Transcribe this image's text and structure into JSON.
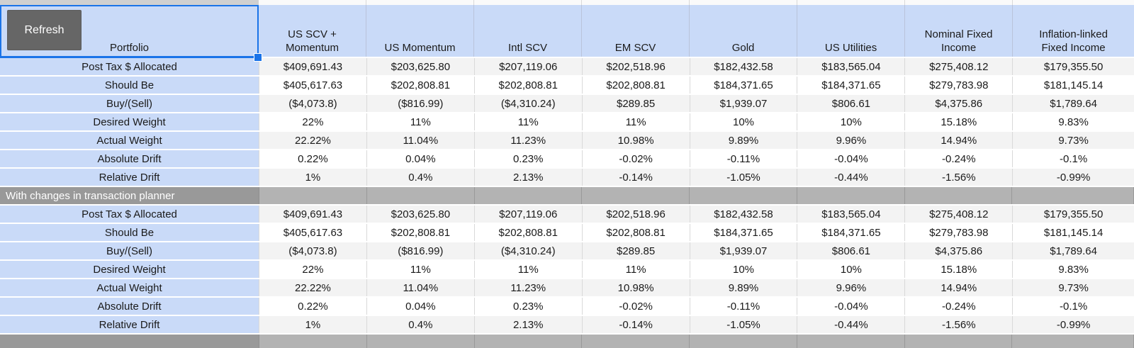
{
  "header": {
    "refresh_label": "Refresh",
    "row_header": "Portfolio",
    "columns": [
      "US SCV +\nMomentum",
      "US Momentum",
      "Intl SCV",
      "EM SCV",
      "Gold",
      "US Utilities",
      "Nominal Fixed\nIncome",
      "Inflation-linked\nFixed Income"
    ]
  },
  "table": {
    "rows": [
      {
        "type": "data",
        "shade": "gray",
        "label": "Post Tax $ Allocated",
        "values": [
          "$409,691.43",
          "$203,625.80",
          "$207,119.06",
          "$202,518.96",
          "$182,432.58",
          "$183,565.04",
          "$275,408.12",
          "$179,355.50"
        ]
      },
      {
        "type": "data",
        "shade": "white",
        "label": "Should Be",
        "values": [
          "$405,617.63",
          "$202,808.81",
          "$202,808.81",
          "$202,808.81",
          "$184,371.65",
          "$184,371.65",
          "$279,783.98",
          "$181,145.14"
        ]
      },
      {
        "type": "data",
        "shade": "gray",
        "label": "Buy/(Sell)",
        "values": [
          "($4,073.8)",
          "($816.99)",
          "($4,310.24)",
          "$289.85",
          "$1,939.07",
          "$806.61",
          "$4,375.86",
          "$1,789.64"
        ]
      },
      {
        "type": "data",
        "shade": "white",
        "label": "Desired Weight",
        "values": [
          "22%",
          "11%",
          "11%",
          "11%",
          "10%",
          "10%",
          "15.18%",
          "9.83%"
        ]
      },
      {
        "type": "data",
        "shade": "gray",
        "label": "Actual Weight",
        "values": [
          "22.22%",
          "11.04%",
          "11.23%",
          "10.98%",
          "9.89%",
          "9.96%",
          "14.94%",
          "9.73%"
        ]
      },
      {
        "type": "data",
        "shade": "white",
        "label": "Absolute Drift",
        "values": [
          "0.22%",
          "0.04%",
          "0.23%",
          "-0.02%",
          "-0.11%",
          "-0.04%",
          "-0.24%",
          "-0.1%"
        ]
      },
      {
        "type": "data",
        "shade": "gray",
        "label": "Relative Drift",
        "values": [
          "1%",
          "0.4%",
          "2.13%",
          "-0.14%",
          "-1.05%",
          "-0.44%",
          "-1.56%",
          "-0.99%"
        ]
      },
      {
        "type": "band",
        "label": "With changes in transaction planner",
        "values": [
          "",
          "",
          "",
          "",
          "",
          "",
          "",
          ""
        ]
      },
      {
        "type": "data",
        "shade": "gray",
        "label": "Post Tax $ Allocated",
        "values": [
          "$409,691.43",
          "$203,625.80",
          "$207,119.06",
          "$202,518.96",
          "$182,432.58",
          "$183,565.04",
          "$275,408.12",
          "$179,355.50"
        ]
      },
      {
        "type": "data",
        "shade": "white",
        "label": "Should Be",
        "values": [
          "$405,617.63",
          "$202,808.81",
          "$202,808.81",
          "$202,808.81",
          "$184,371.65",
          "$184,371.65",
          "$279,783.98",
          "$181,145.14"
        ]
      },
      {
        "type": "data",
        "shade": "gray",
        "label": "Buy/(Sell)",
        "values": [
          "($4,073.8)",
          "($816.99)",
          "($4,310.24)",
          "$289.85",
          "$1,939.07",
          "$806.61",
          "$4,375.86",
          "$1,789.64"
        ]
      },
      {
        "type": "data",
        "shade": "white",
        "label": "Desired Weight",
        "values": [
          "22%",
          "11%",
          "11%",
          "11%",
          "10%",
          "10%",
          "15.18%",
          "9.83%"
        ]
      },
      {
        "type": "data",
        "shade": "gray",
        "label": "Actual Weight",
        "values": [
          "22.22%",
          "11.04%",
          "11.23%",
          "10.98%",
          "9.89%",
          "9.96%",
          "14.94%",
          "9.73%"
        ]
      },
      {
        "type": "data",
        "shade": "white",
        "label": "Absolute Drift",
        "values": [
          "0.22%",
          "0.04%",
          "0.23%",
          "-0.02%",
          "-0.11%",
          "-0.04%",
          "-0.24%",
          "-0.1%"
        ]
      },
      {
        "type": "data",
        "shade": "gray",
        "label": "Relative Drift",
        "values": [
          "1%",
          "0.4%",
          "2.13%",
          "-0.14%",
          "-1.05%",
          "-0.44%",
          "-1.56%",
          "-0.99%"
        ]
      },
      {
        "type": "band",
        "label": "",
        "values": [
          "",
          "",
          "",
          "",
          "",
          "",
          "",
          ""
        ]
      }
    ]
  },
  "colors": {
    "selection_accent": "#1a73e8",
    "header_blue": "#c9daf8",
    "row_alt_gray": "#f3f3f3",
    "band_label_gray": "#999999",
    "band_cell_gray": "#b3b3b3",
    "button_gray": "#666666"
  }
}
